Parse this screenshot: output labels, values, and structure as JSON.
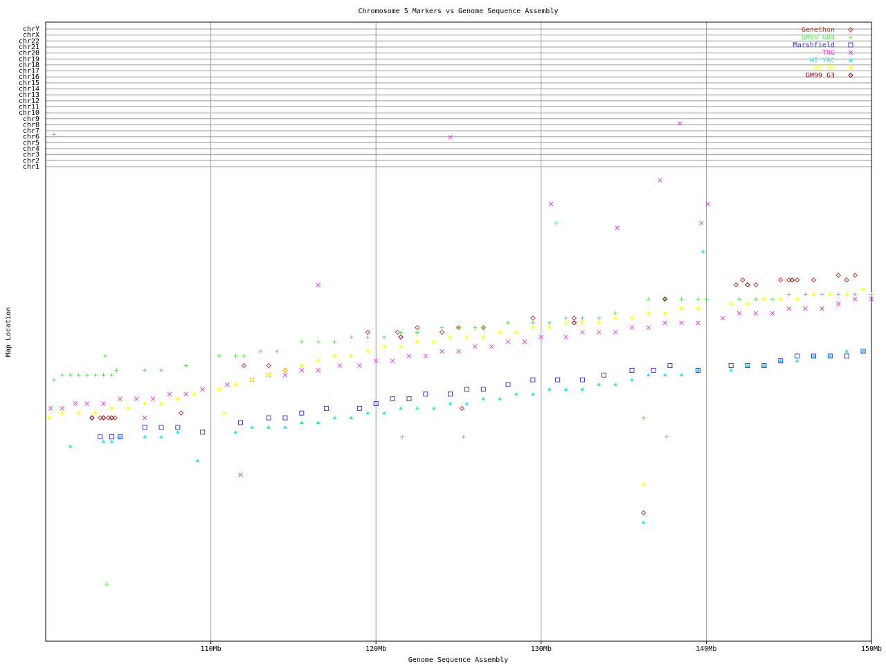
{
  "chart_data": {
    "type": "scatter",
    "title": "Chromosome 5 Markers vs Genome Sequence Assembly",
    "xlabel": "Genome Sequence Assembly",
    "ylabel": "Map Location",
    "xlim": [
      100,
      150
    ],
    "x_ticks": [
      {
        "value": 110,
        "label": "110Mb"
      },
      {
        "value": 120,
        "label": "120Mb"
      },
      {
        "value": 130,
        "label": "130Mb"
      },
      {
        "value": 140,
        "label": "140Mb"
      },
      {
        "value": 150,
        "label": "150Mb"
      }
    ],
    "chromosome_rows": [
      "chrY",
      "chrX",
      "chr22",
      "chr21",
      "chr20",
      "chr19",
      "chr18",
      "chr17",
      "chr16",
      "chr15",
      "chr14",
      "chr13",
      "chr12",
      "chr11",
      "chr10",
      "chr9",
      "chr8",
      "chr7",
      "chr6",
      "chr5",
      "chr4",
      "chr3",
      "chr2",
      "chr1"
    ],
    "grid": true,
    "legend_position": "top-right",
    "series": [
      {
        "name": "Genethon",
        "color": "#c0392b",
        "marker": "diamond",
        "points": [
          [
            102.8,
            0.53
          ],
          [
            103.3,
            0.53
          ],
          [
            103.8,
            0.53
          ],
          [
            104.2,
            0.53
          ],
          [
            108.2,
            0.52
          ],
          [
            112.0,
            0.42
          ],
          [
            113.5,
            0.42
          ],
          [
            114.5,
            0.43
          ],
          [
            119.5,
            0.35
          ],
          [
            121.3,
            0.35
          ],
          [
            122.5,
            0.34
          ],
          [
            124.0,
            0.35
          ],
          [
            125.0,
            0.34
          ],
          [
            125.2,
            0.51
          ],
          [
            126.5,
            0.34
          ],
          [
            129.5,
            0.32
          ],
          [
            132.0,
            0.32
          ],
          [
            136.2,
            0.73
          ],
          [
            141.8,
            0.25
          ],
          [
            142.2,
            0.24
          ],
          [
            143.0,
            0.25
          ],
          [
            144.5,
            0.24
          ],
          [
            145.0,
            0.24
          ],
          [
            145.5,
            0.24
          ],
          [
            146.5,
            0.24
          ],
          [
            148.0,
            0.23
          ],
          [
            148.5,
            0.24
          ],
          [
            149.0,
            0.23
          ]
        ]
      },
      {
        "name": "GM99 GB4",
        "color": "#55e055",
        "marker": "plus",
        "points": [
          [
            100.5,
            0.45
          ],
          [
            101.0,
            0.44
          ],
          [
            101.5,
            0.44
          ],
          [
            102.0,
            0.44
          ],
          [
            102.5,
            0.44
          ],
          [
            103.0,
            0.44
          ],
          [
            103.5,
            0.44
          ],
          [
            104.0,
            0.44
          ],
          [
            104.3,
            0.43
          ],
          [
            103.6,
            0.4
          ],
          [
            106.0,
            0.43
          ],
          [
            107.0,
            0.43
          ],
          [
            108.5,
            0.42
          ],
          [
            110.5,
            0.4
          ],
          [
            111.5,
            0.4
          ],
          [
            112.0,
            0.4
          ],
          [
            113.0,
            0.39
          ],
          [
            114.0,
            0.39
          ],
          [
            115.5,
            0.37
          ],
          [
            116.5,
            0.37
          ],
          [
            117.5,
            0.37
          ],
          [
            118.5,
            0.36
          ],
          [
            119.5,
            0.36
          ],
          [
            120.5,
            0.36
          ],
          [
            121.5,
            0.35
          ],
          [
            122.5,
            0.35
          ],
          [
            124.0,
            0.34
          ],
          [
            125.0,
            0.34
          ],
          [
            126.0,
            0.34
          ],
          [
            126.5,
            0.34
          ],
          [
            128.0,
            0.33
          ],
          [
            129.5,
            0.33
          ],
          [
            130.5,
            0.33
          ],
          [
            131.5,
            0.32
          ],
          [
            132.5,
            0.32
          ],
          [
            133.5,
            0.32
          ],
          [
            134.5,
            0.31
          ],
          [
            136.5,
            0.28
          ],
          [
            137.5,
            0.28
          ],
          [
            138.5,
            0.28
          ],
          [
            139.5,
            0.28
          ],
          [
            140.0,
            0.28
          ],
          [
            142.0,
            0.28
          ],
          [
            143.0,
            0.28
          ],
          [
            144.0,
            0.28
          ],
          [
            145.0,
            0.27
          ],
          [
            146.0,
            0.27
          ],
          [
            147.0,
            0.27
          ],
          [
            148.0,
            0.27
          ],
          [
            149.0,
            0.27
          ],
          [
            150.0,
            0.27
          ],
          [
            121.6,
            0.57
          ],
          [
            125.3,
            0.57
          ],
          [
            130.9,
            0.12
          ],
          [
            136.2,
            0.53
          ],
          [
            137.6,
            0.57
          ],
          [
            103.7,
            0.88
          ],
          [
            100.5,
            -0.12
          ]
        ]
      },
      {
        "name": "Marshfield",
        "color": "#3b3bcc",
        "marker": "square",
        "points": [
          [
            103.3,
            0.57
          ],
          [
            104.0,
            0.57
          ],
          [
            104.5,
            0.57
          ],
          [
            106.0,
            0.55
          ],
          [
            107.0,
            0.55
          ],
          [
            108.0,
            0.55
          ],
          [
            109.5,
            0.56
          ],
          [
            111.8,
            0.54
          ],
          [
            113.5,
            0.53
          ],
          [
            114.5,
            0.53
          ],
          [
            115.5,
            0.52
          ],
          [
            117.0,
            0.51
          ],
          [
            119.0,
            0.51
          ],
          [
            120.0,
            0.5
          ],
          [
            121.0,
            0.49
          ],
          [
            122.0,
            0.49
          ],
          [
            123.0,
            0.48
          ],
          [
            124.5,
            0.48
          ],
          [
            125.5,
            0.47
          ],
          [
            126.5,
            0.47
          ],
          [
            128.0,
            0.46
          ],
          [
            129.5,
            0.45
          ],
          [
            131.0,
            0.45
          ],
          [
            132.5,
            0.45
          ],
          [
            133.8,
            0.44
          ],
          [
            135.5,
            0.43
          ],
          [
            136.8,
            0.43
          ],
          [
            137.8,
            0.42
          ],
          [
            139.5,
            0.43
          ],
          [
            141.5,
            0.42
          ],
          [
            142.5,
            0.42
          ],
          [
            143.5,
            0.42
          ],
          [
            144.5,
            0.41
          ],
          [
            145.5,
            0.4
          ],
          [
            146.5,
            0.4
          ],
          [
            147.5,
            0.4
          ],
          [
            148.5,
            0.4
          ],
          [
            149.5,
            0.39
          ]
        ]
      },
      {
        "name": "TNG",
        "color": "#dd44dd",
        "marker": "x",
        "points": [
          [
            100.3,
            0.51
          ],
          [
            101.0,
            0.51
          ],
          [
            101.8,
            0.5
          ],
          [
            102.5,
            0.5
          ],
          [
            103.5,
            0.5
          ],
          [
            104.5,
            0.49
          ],
          [
            105.5,
            0.49
          ],
          [
            106.5,
            0.49
          ],
          [
            107.5,
            0.48
          ],
          [
            108.5,
            0.48
          ],
          [
            109.5,
            0.47
          ],
          [
            111.0,
            0.46
          ],
          [
            112.5,
            0.45
          ],
          [
            113.5,
            0.44
          ],
          [
            114.5,
            0.44
          ],
          [
            115.5,
            0.43
          ],
          [
            116.5,
            0.43
          ],
          [
            117.8,
            0.42
          ],
          [
            119.0,
            0.42
          ],
          [
            120.0,
            0.41
          ],
          [
            121.0,
            0.41
          ],
          [
            122.0,
            0.4
          ],
          [
            123.0,
            0.4
          ],
          [
            124.0,
            0.39
          ],
          [
            125.0,
            0.39
          ],
          [
            126.0,
            0.38
          ],
          [
            127.0,
            0.38
          ],
          [
            128.0,
            0.37
          ],
          [
            129.0,
            0.37
          ],
          [
            130.0,
            0.36
          ],
          [
            131.5,
            0.36
          ],
          [
            132.5,
            0.35
          ],
          [
            133.5,
            0.35
          ],
          [
            134.5,
            0.35
          ],
          [
            135.5,
            0.34
          ],
          [
            136.5,
            0.34
          ],
          [
            137.5,
            0.33
          ],
          [
            138.5,
            0.33
          ],
          [
            139.5,
            0.33
          ],
          [
            141.0,
            0.32
          ],
          [
            142.0,
            0.31
          ],
          [
            143.0,
            0.31
          ],
          [
            144.0,
            0.31
          ],
          [
            145.0,
            0.3
          ],
          [
            146.0,
            0.3
          ],
          [
            147.0,
            0.3
          ],
          [
            148.0,
            0.29
          ],
          [
            149.0,
            0.28
          ],
          [
            150.0,
            0.28
          ],
          [
            116.5,
            0.25
          ],
          [
            130.6,
            0.08
          ],
          [
            134.6,
            0.13
          ],
          [
            137.2,
            0.03
          ],
          [
            139.7,
            0.12
          ],
          [
            140.1,
            0.08
          ],
          [
            111.8,
            0.65
          ],
          [
            106.0,
            0.53
          ],
          [
            124.5,
            -0.08
          ],
          [
            138.4,
            -0.28
          ]
        ]
      },
      {
        "name": "WI YAC",
        "color": "#33e5e5",
        "marker": "triangle",
        "points": [
          [
            101.5,
            0.59
          ],
          [
            103.5,
            0.58
          ],
          [
            104.0,
            0.58
          ],
          [
            104.5,
            0.57
          ],
          [
            106.0,
            0.57
          ],
          [
            107.0,
            0.57
          ],
          [
            108.0,
            0.56
          ],
          [
            109.2,
            0.62
          ],
          [
            111.5,
            0.56
          ],
          [
            112.5,
            0.55
          ],
          [
            113.5,
            0.55
          ],
          [
            114.5,
            0.55
          ],
          [
            115.5,
            0.54
          ],
          [
            116.5,
            0.54
          ],
          [
            117.5,
            0.53
          ],
          [
            118.5,
            0.53
          ],
          [
            119.5,
            0.52
          ],
          [
            120.5,
            0.52
          ],
          [
            121.5,
            0.51
          ],
          [
            122.5,
            0.51
          ],
          [
            123.5,
            0.51
          ],
          [
            124.5,
            0.5
          ],
          [
            125.5,
            0.5
          ],
          [
            126.5,
            0.49
          ],
          [
            127.5,
            0.49
          ],
          [
            128.5,
            0.48
          ],
          [
            129.5,
            0.48
          ],
          [
            130.5,
            0.47
          ],
          [
            131.5,
            0.47
          ],
          [
            132.5,
            0.47
          ],
          [
            133.5,
            0.46
          ],
          [
            134.5,
            0.46
          ],
          [
            135.5,
            0.45
          ],
          [
            136.5,
            0.44
          ],
          [
            137.5,
            0.44
          ],
          [
            138.5,
            0.44
          ],
          [
            139.5,
            0.43
          ],
          [
            141.5,
            0.43
          ],
          [
            142.5,
            0.42
          ],
          [
            143.5,
            0.42
          ],
          [
            144.5,
            0.41
          ],
          [
            145.5,
            0.41
          ],
          [
            146.5,
            0.4
          ],
          [
            147.5,
            0.4
          ],
          [
            148.5,
            0.39
          ],
          [
            149.5,
            0.39
          ],
          [
            136.2,
            0.75
          ],
          [
            139.8,
            0.18
          ]
        ]
      },
      {
        "name": "WI RH",
        "color": "#ffff33",
        "marker": "star",
        "points": [
          [
            100.2,
            0.53
          ],
          [
            101.0,
            0.52
          ],
          [
            102.0,
            0.52
          ],
          [
            103.0,
            0.52
          ],
          [
            104.0,
            0.51
          ],
          [
            105.0,
            0.51
          ],
          [
            106.0,
            0.5
          ],
          [
            107.0,
            0.5
          ],
          [
            108.0,
            0.49
          ],
          [
            109.0,
            0.48
          ],
          [
            110.5,
            0.47
          ],
          [
            111.5,
            0.46
          ],
          [
            112.5,
            0.45
          ],
          [
            113.5,
            0.44
          ],
          [
            114.5,
            0.43
          ],
          [
            115.5,
            0.42
          ],
          [
            116.5,
            0.41
          ],
          [
            117.5,
            0.4
          ],
          [
            118.5,
            0.4
          ],
          [
            119.5,
            0.39
          ],
          [
            120.5,
            0.38
          ],
          [
            121.5,
            0.38
          ],
          [
            122.5,
            0.37
          ],
          [
            123.5,
            0.37
          ],
          [
            124.5,
            0.36
          ],
          [
            125.5,
            0.36
          ],
          [
            126.5,
            0.36
          ],
          [
            127.5,
            0.35
          ],
          [
            128.5,
            0.35
          ],
          [
            129.5,
            0.34
          ],
          [
            130.5,
            0.34
          ],
          [
            131.5,
            0.33
          ],
          [
            132.5,
            0.33
          ],
          [
            133.5,
            0.33
          ],
          [
            134.5,
            0.32
          ],
          [
            135.5,
            0.32
          ],
          [
            136.5,
            0.31
          ],
          [
            137.5,
            0.31
          ],
          [
            138.5,
            0.3
          ],
          [
            139.5,
            0.3
          ],
          [
            141.5,
            0.29
          ],
          [
            142.5,
            0.29
          ],
          [
            143.5,
            0.28
          ],
          [
            144.5,
            0.28
          ],
          [
            145.5,
            0.28
          ],
          [
            146.5,
            0.27
          ],
          [
            147.5,
            0.27
          ],
          [
            148.5,
            0.27
          ],
          [
            149.5,
            0.26
          ],
          [
            110.8,
            0.52
          ],
          [
            136.2,
            0.67
          ]
        ]
      },
      {
        "name": "GM99 G3",
        "color": "#8b0000",
        "marker": "diamond",
        "points": [
          [
            102.8,
            0.53
          ],
          [
            103.5,
            0.53
          ],
          [
            104.0,
            0.53
          ],
          [
            121.5,
            0.36
          ],
          [
            132.0,
            0.33
          ],
          [
            137.5,
            0.28
          ],
          [
            142.5,
            0.25
          ],
          [
            145.2,
            0.24
          ]
        ]
      }
    ]
  }
}
